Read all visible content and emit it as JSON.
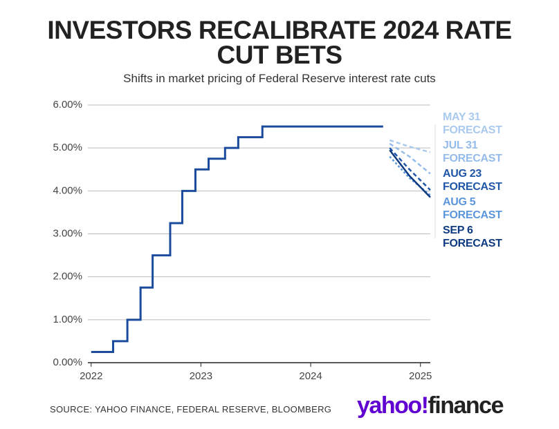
{
  "chart_data": {
    "type": "line",
    "title": "INVESTORS RECALIBRATE 2024 RATE CUT BETS",
    "subtitle": "Shifts in market pricing of Federal Reserve interest rate cuts",
    "source": "SOURCE: YAHOO FINANCE, FEDERAL RESERVE, BLOOMBERG",
    "logo": {
      "brand": "yahoo!",
      "product": "finance"
    },
    "xlim": [
      2021.97,
      2025.09
    ],
    "xticks": [
      2022,
      2023,
      2024,
      2025
    ],
    "ylim": [
      0,
      6
    ],
    "yticks": [
      {
        "value": 0,
        "label": "0.00%"
      },
      {
        "value": 1,
        "label": "1.00%"
      },
      {
        "value": 2,
        "label": "2.00%"
      },
      {
        "value": 3,
        "label": "3.00%"
      },
      {
        "value": 4,
        "label": "4.00%"
      },
      {
        "value": 5,
        "label": "5.00%"
      },
      {
        "value": 6,
        "label": "6.00%"
      }
    ],
    "grid": true,
    "series": [
      {
        "color": "#1a4b9c",
        "style": "solid",
        "step": true,
        "x": [
          2022.0,
          2022.2,
          2022.33,
          2022.45,
          2022.56,
          2022.72,
          2022.83,
          2022.95,
          2023.07,
          2023.22,
          2023.34,
          2023.56,
          2024.66
        ],
        "values": [
          0.25,
          0.5,
          1.0,
          1.75,
          2.5,
          3.25,
          4.0,
          4.5,
          4.75,
          5.0,
          5.25,
          5.5,
          5.5
        ]
      },
      {
        "name": "MAY 31 FORECAST",
        "color": "#a9c9ee",
        "style": "dashed",
        "x": [
          2024.72,
          2024.9,
          2025.09
        ],
        "values": [
          5.18,
          5.03,
          4.9
        ]
      },
      {
        "name": "JUL 31 FORECAST",
        "color": "#94bbea",
        "style": "dashed",
        "x": [
          2024.72,
          2024.9,
          2025.09
        ],
        "values": [
          5.1,
          4.8,
          4.4
        ]
      },
      {
        "name": "AUG 23 FORECAST",
        "color": "#1f56a8",
        "style": "dashed",
        "x": [
          2024.72,
          2024.9,
          2025.09
        ],
        "values": [
          5.0,
          4.5,
          4.02
        ]
      },
      {
        "name": "AUG 5 FORECAST",
        "color": "#5b95dc",
        "style": "dotted",
        "x": [
          2024.72,
          2024.9,
          2025.09
        ],
        "values": [
          4.8,
          4.3,
          3.9
        ]
      },
      {
        "name": "SEP 6 FORECAST",
        "color": "#0d3a80",
        "style": "solid",
        "x": [
          2024.72,
          2024.9,
          2025.09
        ],
        "values": [
          4.95,
          4.35,
          3.85
        ]
      }
    ]
  }
}
